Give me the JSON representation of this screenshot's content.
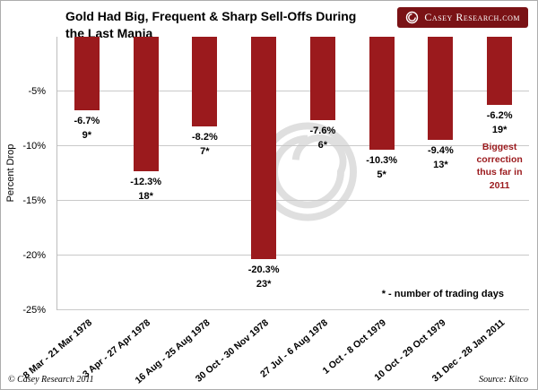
{
  "title": {
    "line1": "Gold Had Big, Frequent & Sharp Sell-Offs During",
    "line2": "the Last Mania"
  },
  "logo": {
    "text": "Casey Research.com",
    "bg_color": "#7a1215"
  },
  "chart_data": {
    "type": "bar",
    "title": "Gold Had Big, Frequent & Sharp Sell-Offs During the Last Mania",
    "ylabel": "Percent Drop",
    "ylim": [
      -25,
      0
    ],
    "ytick_step": 5,
    "yticks": [
      "-5%",
      "-10%",
      "-15%",
      "-20%",
      "-25%"
    ],
    "grid": true,
    "legend_position": "none",
    "bar_color": "#9b1a1d",
    "categories": [
      "8 Mar - 21 Mar 1978",
      "3 Apr - 27 Apr 1978",
      "16 Aug - 25 Aug 1978",
      "30 Oct - 30 Nov 1978",
      "27 Jul - 6 Aug 1978",
      "1 Oct - 8 Oct 1979",
      "10 Oct - 29 Oct 1979",
      "31 Dec - 28 Jan 2011"
    ],
    "values": [
      -6.7,
      -12.3,
      -8.2,
      -20.3,
      -7.6,
      -10.3,
      -9.4,
      -6.2
    ],
    "value_labels": [
      "-6.7%",
      "-12.3%",
      "-8.2%",
      "-20.3%",
      "-7.6%",
      "-10.3%",
      "-9.4%",
      "-6.2%"
    ],
    "trading_day_labels": [
      "9*",
      "18*",
      "7*",
      "23*",
      "6*",
      "5*",
      "13*",
      "19*"
    ],
    "last_bar_annotation": "Biggest correction thus far in 2011",
    "footnote": "* - number of trading days"
  },
  "footer": {
    "left": "© Casey Research 2011",
    "right": "Source: Kitco"
  }
}
